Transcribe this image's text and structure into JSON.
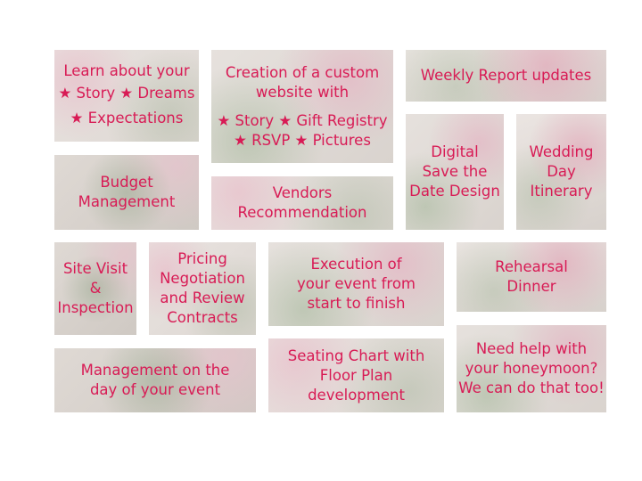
{
  "tiles": {
    "learn": {
      "lines": [
        "Learn about your",
        "★ Story  ★ Dreams",
        "★ Expectations"
      ]
    },
    "website": {
      "lines": [
        "Creation of a custom",
        "website with",
        "★ Story  ★ Gift Registry",
        "★ RSVP  ★ Pictures"
      ]
    },
    "weekly": {
      "lines": [
        "Weekly Report updates"
      ]
    },
    "budget": {
      "lines": [
        "Budget",
        "Management"
      ]
    },
    "vendors": {
      "lines": [
        "Vendors",
        "Recommendation"
      ]
    },
    "digital": {
      "lines": [
        "Digital",
        "Save the",
        "Date Design"
      ]
    },
    "itinerary": {
      "lines": [
        "Wedding",
        "Day",
        "Itinerary"
      ]
    },
    "site_visit": {
      "lines": [
        "Site Visit",
        "&",
        "Inspection"
      ]
    },
    "pricing": {
      "lines": [
        "Pricing",
        "Negotiation",
        "and Review",
        "Contracts"
      ]
    },
    "execution": {
      "lines": [
        "Execution of",
        "your event from",
        "start to finish"
      ]
    },
    "rehearsal": {
      "lines": [
        "Rehearsal",
        "Dinner"
      ]
    },
    "management": {
      "lines": [
        "Management on the",
        "day of your event"
      ]
    },
    "seating": {
      "lines": [
        "Seating Chart with",
        "Floor Plan",
        "development"
      ]
    },
    "honeymoon": {
      "lines": [
        "Need help with",
        "your honeymoon?",
        "We can do that too!"
      ]
    }
  },
  "colors": {
    "text": "#d81b55"
  }
}
